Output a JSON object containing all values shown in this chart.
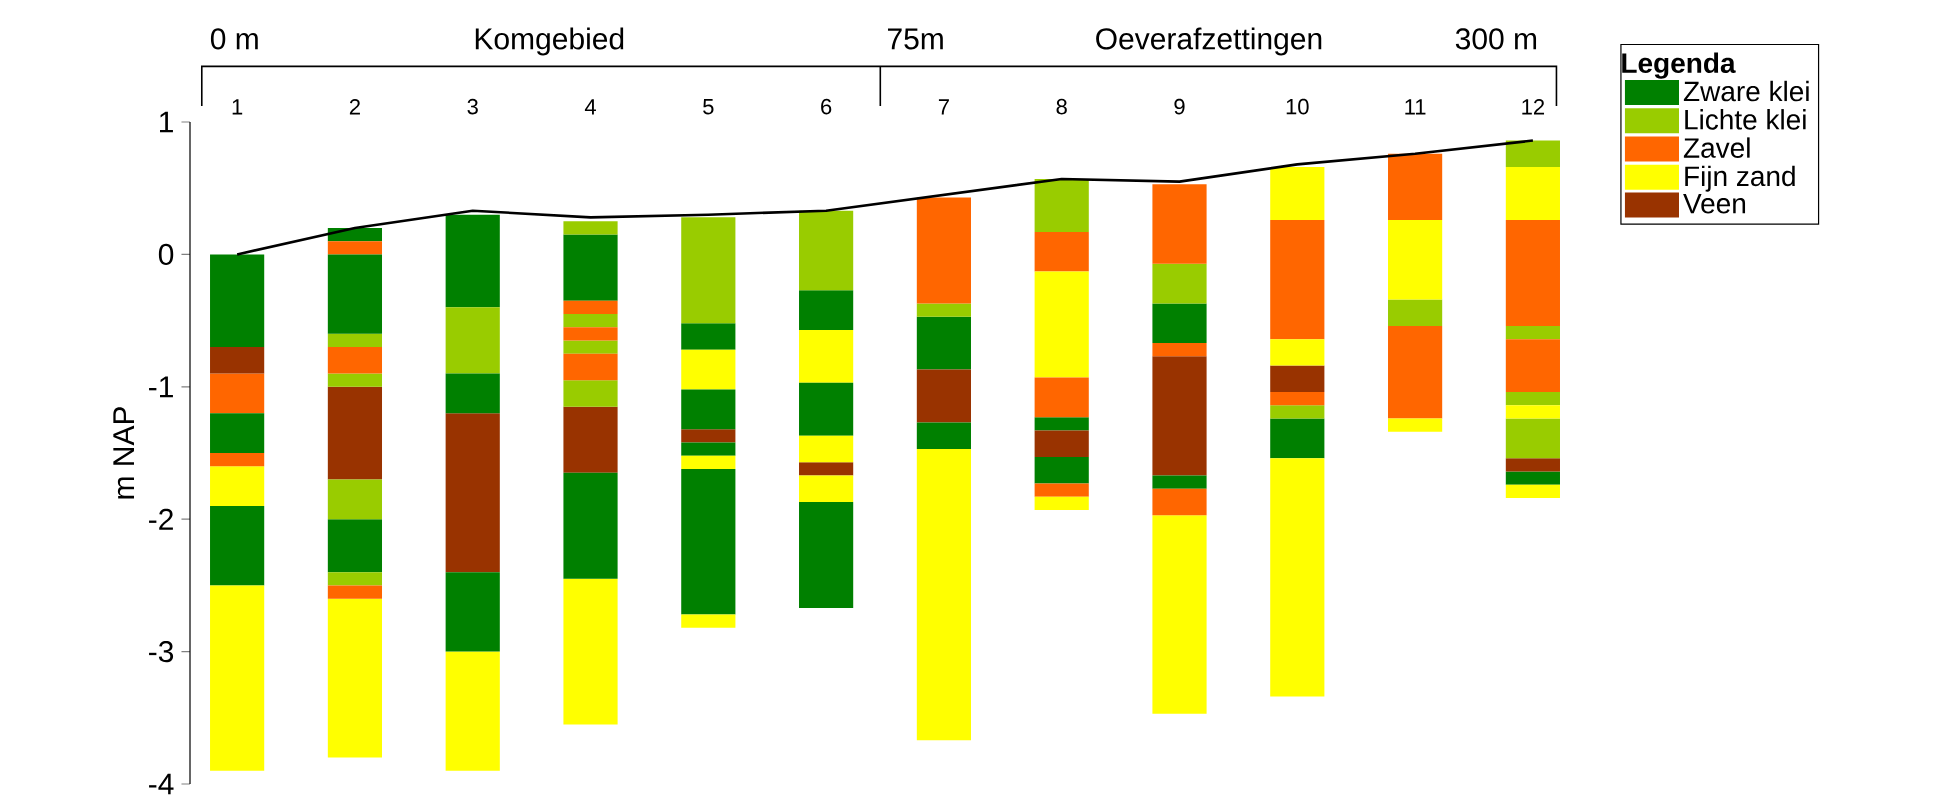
{
  "chart_data": {
    "type": "bar",
    "ylabel": "m NAP",
    "legend_title": "Legenda",
    "legend": "top right",
    "annotations": [
      "0 m",
      "Komgebied",
      "75m",
      "Oeverafzettingen",
      "300 m"
    ],
    "categories": [
      "1",
      "2",
      "3",
      "4",
      "5",
      "6",
      "7",
      "8",
      "9",
      "10",
      "11",
      "12"
    ],
    "ylim": [
      -4,
      1
    ],
    "yticks": [
      -4,
      -3,
      -2,
      -1,
      0,
      1
    ],
    "series": [
      {
        "name": "Zware klei",
        "color": "#008000",
        "values": [
          0.7,
          0.1,
          0.7,
          0.5,
          0.2,
          0.3,
          0.4,
          0.1,
          0.3,
          0.3,
          null,
          0.1
        ],
        "base": [
          -0.7,
          0.1,
          -0.4,
          -0.35,
          -0.72,
          -0.57,
          -0.87,
          -1.33,
          -0.67,
          -1.54,
          null,
          -1.74
        ]
      },
      {
        "name": "Lichte klei",
        "color": "#99cc00",
        "values": [
          null,
          0.1,
          0.5,
          0.1,
          0.8,
          0.6,
          0.1,
          0.4,
          0.3,
          0.1,
          0.2,
          0.2
        ],
        "base": [
          null,
          -0.7,
          -0.9,
          0.15,
          -0.52,
          -0.27,
          -0.47,
          0.17,
          -0.37,
          -1.24,
          -0.54,
          0.66
        ]
      },
      {
        "name": "Zavel",
        "color": "#ff6600",
        "values": [
          0.3,
          0.1,
          null,
          0.1,
          null,
          null,
          0.8,
          0.3,
          0.6,
          0.9,
          0.5,
          0.8
        ],
        "base": [
          -1.2,
          0,
          null,
          -0.45,
          null,
          null,
          -0.37,
          -0.13,
          -0.07,
          -0.64,
          0.26,
          -0.54
        ]
      },
      {
        "name": "Fijn zand",
        "color": "#ffff00",
        "values": [
          0.3,
          1.2,
          0.9,
          1.1,
          0.3,
          0.4,
          2.2,
          0.8,
          1.5,
          0.4,
          0.6,
          0.4
        ],
        "base": [
          -1.9,
          -3.8,
          -3.9,
          -3.55,
          -1.02,
          -0.97,
          -3.67,
          -0.93,
          -3.47,
          0.26,
          -0.34,
          0.26
        ]
      },
      {
        "name": "Veen",
        "color": "#993300",
        "values": [
          0.2,
          0.7,
          1.2,
          0.5,
          0.1,
          0.1,
          0.4,
          0.2,
          0.9,
          0.2,
          null,
          0.1
        ],
        "base": [
          -0.9,
          -1.7,
          -2.4,
          -1.65,
          -1.42,
          -1.67,
          -1.27,
          -1.53,
          -1.67,
          -1.04,
          null,
          -1.64
        ]
      },
      {
        "color": "#008000",
        "values": [
          0.3,
          0.6,
          0.3,
          0.8,
          0.3,
          0.4,
          0.2,
          0.2,
          0.1,
          null,
          null,
          null
        ],
        "base": [
          -1.5,
          -0.6,
          -1.2,
          -2.45,
          -1.32,
          -1.37,
          -1.47,
          -1.73,
          -1.77,
          null,
          null,
          null
        ]
      },
      {
        "color": "#008000",
        "values": [
          0.6,
          0.4,
          0.6,
          null,
          0.1,
          0.8,
          null,
          null,
          null,
          null,
          null,
          null
        ],
        "base": [
          -2.5,
          -2.4,
          -3.0,
          null,
          -1.52,
          -2.67,
          null,
          null,
          null,
          null,
          null,
          null
        ]
      },
      {
        "color": "#008000",
        "values": [
          null,
          null,
          null,
          null,
          1.1,
          null,
          null,
          null,
          null,
          null,
          null,
          null
        ],
        "base": [
          null,
          null,
          null,
          null,
          -2.72,
          null,
          null,
          null,
          null,
          null,
          null,
          null
        ]
      },
      {
        "color": "#99cc00",
        "values": [
          null,
          0.1,
          null,
          0.1,
          null,
          null,
          null,
          null,
          null,
          null,
          null,
          0.1
        ],
        "base": [
          null,
          -1.0,
          null,
          -0.55,
          null,
          null,
          null,
          null,
          null,
          null,
          null,
          -0.64
        ]
      },
      {
        "color": "#99cc00",
        "values": [
          null,
          0.3,
          null,
          0.1,
          null,
          null,
          null,
          null,
          null,
          null,
          null,
          0.1
        ],
        "base": [
          null,
          -2.0,
          null,
          -0.75,
          null,
          null,
          null,
          null,
          null,
          null,
          null,
          -1.14
        ]
      },
      {
        "color": "#99cc00",
        "values": [
          null,
          0.1,
          null,
          0.2,
          null,
          null,
          null,
          null,
          null,
          null,
          null,
          0.3
        ],
        "base": [
          null,
          -2.5,
          null,
          -1.15,
          null,
          null,
          null,
          null,
          null,
          null,
          null,
          -1.54
        ]
      },
      {
        "color": "#ff6600",
        "values": [
          0.1,
          0.2,
          null,
          0.1,
          null,
          null,
          null,
          0.3,
          0.1,
          0.1,
          0.7,
          0.4
        ],
        "base": [
          -1.6,
          -0.9,
          null,
          -0.65,
          null,
          null,
          null,
          -1.23,
          -0.77,
          -1.14,
          -1.24,
          -1.04
        ]
      },
      {
        "color": "#ff6600",
        "values": [
          null,
          0.1,
          null,
          0.2,
          null,
          null,
          null,
          0.1,
          0.2,
          null,
          null,
          null
        ],
        "base": [
          null,
          -2.6,
          null,
          -0.95,
          null,
          null,
          null,
          -1.83,
          -1.97,
          null,
          null,
          null
        ]
      },
      {
        "color": "#ffff00",
        "values": [
          1.4,
          null,
          null,
          null,
          0.1,
          0.2,
          null,
          0.1,
          null,
          0.2,
          0.1,
          0.1
        ],
        "base": [
          -3.9,
          null,
          null,
          null,
          -1.62,
          -1.57,
          null,
          -1.93,
          null,
          -0.84,
          -1.34,
          -1.24
        ]
      },
      {
        "color": "#ffff00",
        "values": [
          null,
          null,
          null,
          null,
          0.1,
          0.2,
          null,
          null,
          null,
          1.8,
          null,
          0.1
        ],
        "base": [
          null,
          null,
          null,
          null,
          -2.82,
          -1.87,
          null,
          null,
          null,
          -3.34,
          null,
          -1.84
        ]
      },
      {
        "type": "line",
        "color": "#000000",
        "values": [
          0,
          0.2,
          0.33,
          0.28,
          0.3,
          0.33,
          0.45,
          0.57,
          0.55,
          0.68,
          0.76,
          0.86
        ]
      }
    ]
  }
}
